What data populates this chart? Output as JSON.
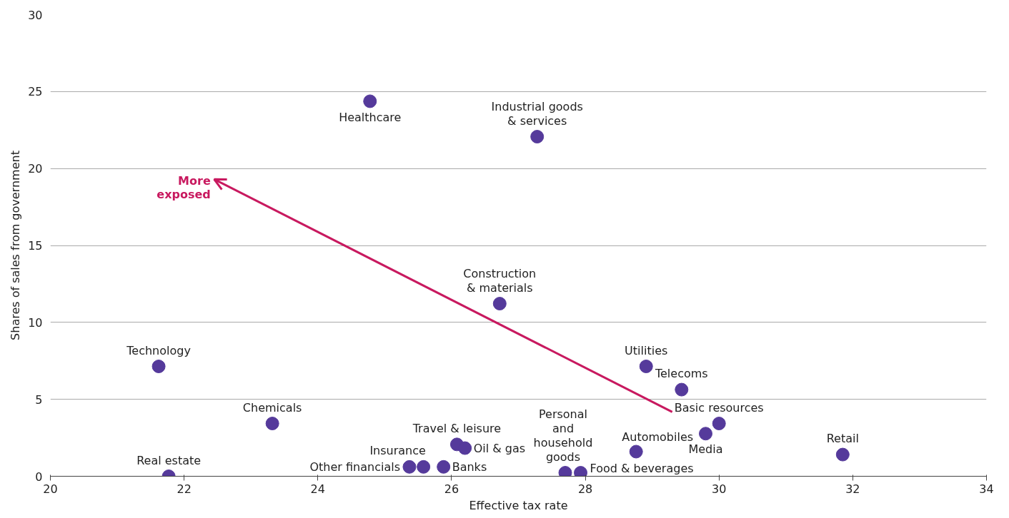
{
  "chart_data": {
    "type": "scatter",
    "xlabel": "Effective tax rate",
    "ylabel": "Shares of sales from government",
    "xlim": [
      20,
      34
    ],
    "ylim": [
      0,
      30
    ],
    "xticks": [
      20,
      22,
      24,
      26,
      28,
      30,
      32,
      34
    ],
    "yticks": [
      0,
      5,
      10,
      15,
      20,
      25,
      30
    ],
    "grid": "y",
    "marker": "circle",
    "series": [
      {
        "color": "#553a9b",
        "x": [
          24.78,
          27.28,
          26.72,
          21.62,
          23.32,
          21.77,
          28.91,
          29.44,
          30.0,
          29.8,
          28.76,
          31.85,
          26.08,
          26.2,
          25.58,
          25.37,
          25.88,
          27.7,
          27.93
        ],
        "values": [
          24.37,
          22.07,
          11.22,
          7.14,
          3.43,
          0,
          7.14,
          5.63,
          3.43,
          2.77,
          1.6,
          1.41,
          2.07,
          1.83,
          0.61,
          0.61,
          0.61,
          0.23,
          0.23
        ]
      },
      {
        "type": "line",
        "marker": "none",
        "color": "#c8195f",
        "x": [
          29.3,
          22.45
        ],
        "values": [
          4.18,
          19.3
        ]
      }
    ],
    "annotations": [
      {
        "text": "Healthcare",
        "x": 24.78,
        "y": 24.37
      },
      {
        "text": "Industrial goods\n& services",
        "x": 27.28,
        "y": 22.07
      },
      {
        "text": "Construction\n& materials",
        "x": 26.72,
        "y": 11.22
      },
      {
        "text": "Technology",
        "x": 21.62,
        "y": 7.14
      },
      {
        "text": "Chemicals",
        "x": 23.32,
        "y": 3.43
      },
      {
        "text": "Real estate",
        "x": 21.77,
        "y": 0
      },
      {
        "text": "Utilities",
        "x": 28.91,
        "y": 7.14
      },
      {
        "text": "Telecoms",
        "x": 29.44,
        "y": 5.63
      },
      {
        "text": "Basic resources",
        "x": 30.0,
        "y": 3.43
      },
      {
        "text": "Media",
        "x": 29.8,
        "y": 2.77
      },
      {
        "text": "Automobiles",
        "x": 28.76,
        "y": 1.6
      },
      {
        "text": "Retail",
        "x": 31.85,
        "y": 1.41
      },
      {
        "text": "Travel & leisure",
        "x": 26.08,
        "y": 2.07
      },
      {
        "text": "Oil & gas",
        "x": 26.2,
        "y": 1.83
      },
      {
        "text": "Insurance",
        "x": 25.58,
        "y": 0.61
      },
      {
        "text": "Other financials",
        "x": 25.37,
        "y": 0.61
      },
      {
        "text": "Banks",
        "x": 25.88,
        "y": 0.61
      },
      {
        "text": "Personal\nand\nhousehold\ngoods",
        "x": 27.7,
        "y": 0.23
      },
      {
        "text": "Food & beverages",
        "x": 27.93,
        "y": 0.23
      },
      {
        "text": "More\nexposed",
        "x": 22.45,
        "y": 19.3
      }
    ]
  }
}
